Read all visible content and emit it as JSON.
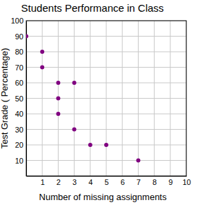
{
  "chart_data": {
    "type": "scatter",
    "title": "Students Performance in Class",
    "x_label": "Number of missing assignments",
    "y_label": "Test Grade ( Percentage)",
    "x": [
      0,
      1,
      1,
      2,
      2,
      2,
      3,
      3,
      4,
      5,
      7
    ],
    "values": [
      90,
      80,
      70,
      60,
      50,
      40,
      60,
      30,
      20,
      20,
      10
    ],
    "color": "#800080",
    "marker": "circle",
    "xlim": [
      0,
      10
    ],
    "xticks": [
      1,
      2,
      3,
      4,
      5,
      6,
      7,
      8,
      9,
      10
    ],
    "ylim": [
      0,
      100
    ],
    "yticks": [
      10,
      20,
      30,
      40,
      50,
      60,
      70,
      80,
      90,
      100
    ],
    "grid": true
  }
}
